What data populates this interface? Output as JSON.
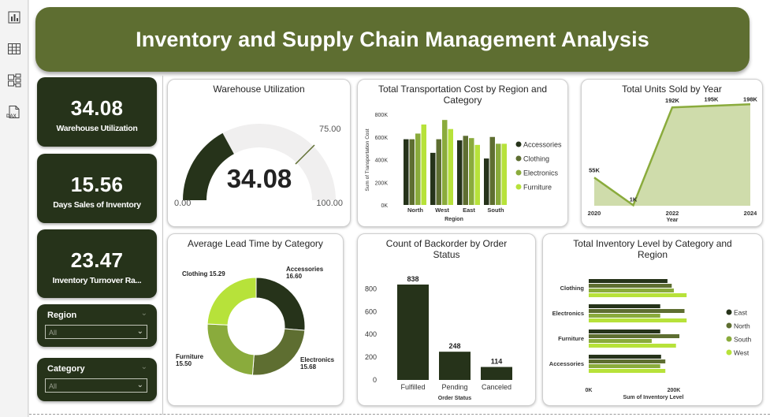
{
  "title": "Inventory and Supply Chain Management Analysis",
  "colors": {
    "dark": "#26331a",
    "olive": "#5e6e31",
    "green": "#8aab3c",
    "lime": "#b7e23a",
    "banner": "#5e6e31"
  },
  "sidebar": {
    "icons": [
      "bar-chart-icon",
      "table-icon",
      "model-icon",
      "dax-icon"
    ],
    "dax_label": "DAX"
  },
  "kpis": [
    {
      "value": "34.08",
      "label": "Warehouse Utilization"
    },
    {
      "value": "15.56",
      "label": "Days Sales of Inventory"
    },
    {
      "value": "23.47",
      "label": "Inventory Turnover Ra..."
    }
  ],
  "slicers": [
    {
      "title": "Region",
      "value": "All"
    },
    {
      "title": "Category",
      "value": "All"
    }
  ],
  "charts": {
    "gauge": {
      "title": "Warehouse Utilization",
      "value": 34.08,
      "value_label": "34.08",
      "min": 0,
      "max": 100,
      "target": 75,
      "min_label": "0.00",
      "max_label": "100.00",
      "target_label": "75.00"
    },
    "transport": {
      "title": "Total Transportation Cost by Region and Category",
      "title_line1": "Total Transportation Cost by Region and",
      "title_line2": "Category",
      "ylabel": "Sum of Transportation Cost",
      "xlabel": "Region",
      "tick_labels": [
        "0K",
        "200K",
        "400K",
        "600K",
        "800K"
      ]
    },
    "units": {
      "title": "Total Units Sold by Year",
      "xlabel": "Year",
      "tick_labels": [
        "2020",
        "2022",
        "2024"
      ]
    },
    "leadtime": {
      "title": "Average Lead Time by Category"
    },
    "backorder": {
      "title": "Count of Backorder by Order Status",
      "title_line1": "Count of Backorder by Order",
      "title_line2": "Status",
      "xlabel": "Order Status",
      "tick_labels": [
        "0",
        "200",
        "400",
        "600",
        "800"
      ]
    },
    "inventory": {
      "title": "Total Inventory Level by Category and Region",
      "title_line1": "Total Inventory Level by Category and",
      "title_line2": "Region",
      "xlabel": "Sum of Inventory Level",
      "tick_labels": [
        "0K",
        "200K"
      ]
    }
  },
  "chart_data": [
    {
      "type": "gauge",
      "title": "Warehouse Utilization",
      "value": 34.08,
      "min": 0,
      "max": 100,
      "target": 75
    },
    {
      "type": "bar",
      "title": "Total Transportation Cost by Region and Category",
      "xlabel": "Region",
      "ylabel": "Sum of Transportation Cost",
      "ylim": [
        0,
        800000
      ],
      "categories": [
        "North",
        "West",
        "East",
        "South"
      ],
      "series": [
        {
          "name": "Accessories",
          "color": "#26331a",
          "values": [
            580000,
            460000,
            570000,
            410000
          ]
        },
        {
          "name": "Clothing",
          "color": "#5e6e31",
          "values": [
            580000,
            580000,
            610000,
            600000
          ]
        },
        {
          "name": "Electronics",
          "color": "#8aab3c",
          "values": [
            630000,
            750000,
            590000,
            540000
          ]
        },
        {
          "name": "Furniture",
          "color": "#b7e23a",
          "values": [
            710000,
            670000,
            530000,
            540000
          ]
        }
      ],
      "legend": "right"
    },
    {
      "type": "area",
      "title": "Total Units Sold by Year",
      "xlabel": "Year",
      "x": [
        2020,
        2021,
        2022,
        2023,
        2024
      ],
      "values": [
        55000,
        1000,
        192000,
        195000,
        198000
      ],
      "data_labels": [
        "55K",
        "1K",
        "192K",
        "195K",
        "198K"
      ]
    },
    {
      "type": "pie",
      "title": "Average Lead Time by Category",
      "donut": true,
      "slices": [
        {
          "name": "Accessories",
          "value": 16.6,
          "label": "16.60",
          "color": "#26331a"
        },
        {
          "name": "Electronics",
          "value": 15.68,
          "label": "15.68",
          "color": "#5e6e31"
        },
        {
          "name": "Furniture",
          "value": 15.5,
          "label": "15.50",
          "color": "#8aab3c"
        },
        {
          "name": "Clothing",
          "value": 15.29,
          "label": "15.29",
          "color": "#b7e23a"
        }
      ]
    },
    {
      "type": "bar",
      "title": "Count of Backorder by Order Status",
      "xlabel": "Order Status",
      "ylim": [
        0,
        900
      ],
      "categories": [
        "Fulfilled",
        "Pending",
        "Canceled"
      ],
      "values": [
        838,
        248,
        114
      ],
      "color": "#26331a"
    },
    {
      "type": "bar",
      "orientation": "horizontal",
      "title": "Total Inventory Level by Category and Region",
      "xlabel": "Sum of Inventory Level",
      "categories": [
        "Clothing",
        "Electronics",
        "Furniture",
        "Accessories"
      ],
      "series": [
        {
          "name": "East",
          "color": "#26331a",
          "values": [
            185000,
            168000,
            168000,
            170000
          ]
        },
        {
          "name": "North",
          "color": "#5e6e31",
          "values": [
            195000,
            225000,
            213000,
            180000
          ]
        },
        {
          "name": "South",
          "color": "#8aab3c",
          "values": [
            200000,
            168000,
            148000,
            168000
          ]
        },
        {
          "name": "West",
          "color": "#b7e23a",
          "values": [
            230000,
            230000,
            205000,
            180000
          ]
        }
      ],
      "xlim": [
        0,
        250000
      ],
      "legend": "right"
    }
  ]
}
